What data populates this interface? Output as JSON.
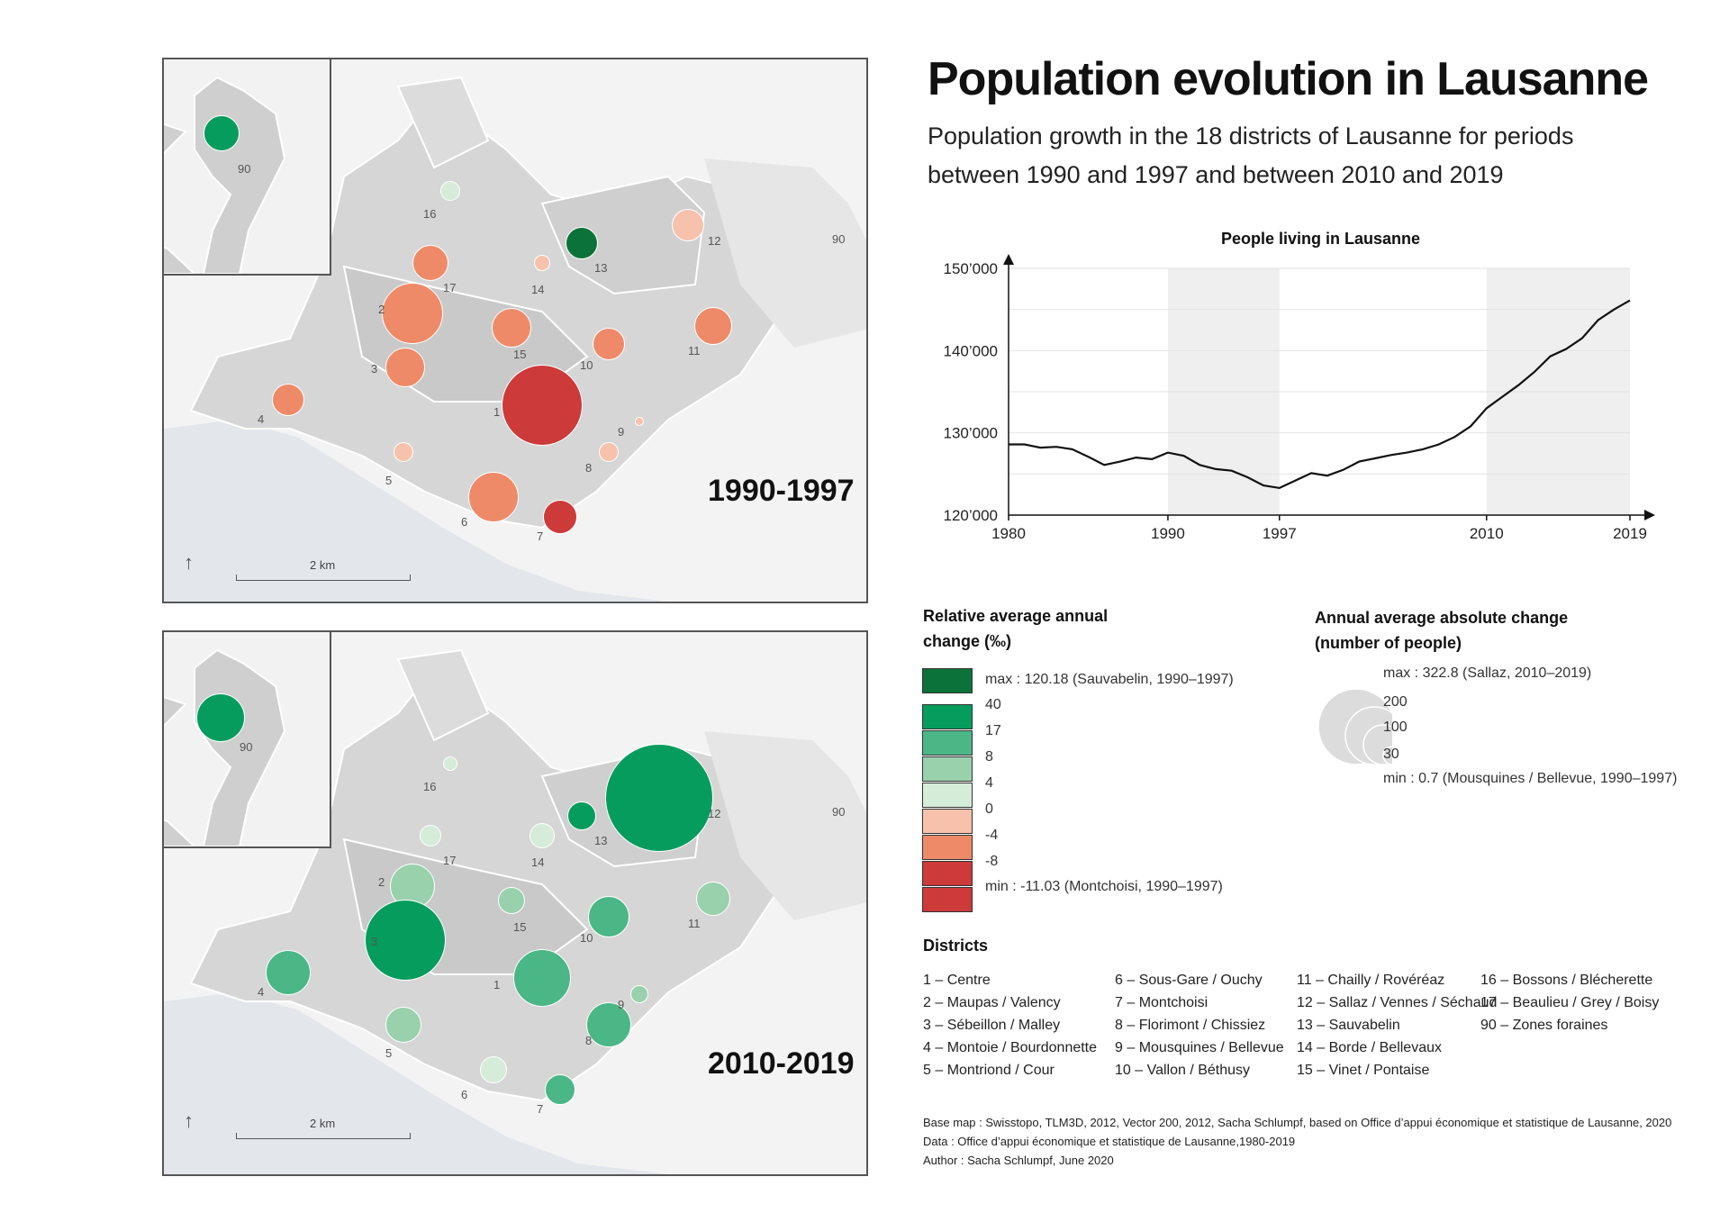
{
  "title": "Population evolution in Lausanne",
  "subtitle": "Population growth in the 18 districts of Lausanne for periods between 1990 and 1997 and between 2010 and 2019",
  "maps": [
    {
      "period": "1990-1997",
      "scale_label": "2 km",
      "inset_labels": [
        "90",
        "90"
      ],
      "outer_label": "90",
      "inset_circle": {
        "label": "90",
        "color": "#069c5d"
      },
      "districts": [
        {
          "id": "1",
          "color": "#cc3a3a",
          "size": 90
        },
        {
          "id": "2",
          "color": "#ef8a68",
          "size": 68
        },
        {
          "id": "3",
          "color": "#ef8a68",
          "size": 44
        },
        {
          "id": "4",
          "color": "#ef8a68",
          "size": 36
        },
        {
          "id": "5",
          "color": "#f7c2ac",
          "size": 22
        },
        {
          "id": "6",
          "color": "#ef8a68",
          "size": 56
        },
        {
          "id": "7",
          "color": "#cc3a3a",
          "size": 38
        },
        {
          "id": "8",
          "color": "#f7c2ac",
          "size": 22
        },
        {
          "id": "9",
          "color": "#f7c2ac",
          "size": 10
        },
        {
          "id": "10",
          "color": "#ef8a68",
          "size": 36
        },
        {
          "id": "11",
          "color": "#ef8a68",
          "size": 42
        },
        {
          "id": "12",
          "color": "#f7c2ac",
          "size": 36
        },
        {
          "id": "13",
          "color": "#0b7339",
          "size": 36
        },
        {
          "id": "14",
          "color": "#f7c2ac",
          "size": 18
        },
        {
          "id": "15",
          "color": "#ef8a68",
          "size": 44
        },
        {
          "id": "16",
          "color": "#d5ecd9",
          "size": 22
        },
        {
          "id": "17",
          "color": "#ef8a68",
          "size": 40
        }
      ]
    },
    {
      "period": "2010-2019",
      "scale_label": "2 km",
      "inset_labels": [
        "90",
        "90"
      ],
      "outer_label": "90",
      "inset_circle": {
        "label": "90",
        "color": "#069c5d"
      },
      "districts": [
        {
          "id": "1",
          "color": "#4bb686",
          "size": 64
        },
        {
          "id": "2",
          "color": "#98d1ac",
          "size": 50
        },
        {
          "id": "3",
          "color": "#069c5d",
          "size": 90
        },
        {
          "id": "4",
          "color": "#4bb686",
          "size": 50
        },
        {
          "id": "5",
          "color": "#98d1ac",
          "size": 40
        },
        {
          "id": "6",
          "color": "#d5ecd9",
          "size": 30
        },
        {
          "id": "7",
          "color": "#4bb686",
          "size": 34
        },
        {
          "id": "8",
          "color": "#4bb686",
          "size": 50
        },
        {
          "id": "9",
          "color": "#98d1ac",
          "size": 20
        },
        {
          "id": "10",
          "color": "#4bb686",
          "size": 46
        },
        {
          "id": "11",
          "color": "#98d1ac",
          "size": 38
        },
        {
          "id": "12",
          "color": "#069c5d",
          "size": 120
        },
        {
          "id": "13",
          "color": "#069c5d",
          "size": 32
        },
        {
          "id": "14",
          "color": "#d5ecd9",
          "size": 28
        },
        {
          "id": "15",
          "color": "#98d1ac",
          "size": 30
        },
        {
          "id": "16",
          "color": "#d5ecd9",
          "size": 16
        },
        {
          "id": "17",
          "color": "#d5ecd9",
          "size": 24
        }
      ]
    }
  ],
  "chart_data": {
    "type": "line",
    "title": "People living in Lausanne",
    "x": [
      1980,
      1981,
      1982,
      1983,
      1984,
      1985,
      1986,
      1987,
      1988,
      1989,
      1990,
      1991,
      1992,
      1993,
      1994,
      1995,
      1996,
      1997,
      1998,
      1999,
      2000,
      2001,
      2002,
      2003,
      2004,
      2005,
      2006,
      2007,
      2008,
      2009,
      2010,
      2011,
      2012,
      2013,
      2014,
      2015,
      2016,
      2017,
      2018,
      2019
    ],
    "y": [
      128600,
      128600,
      128200,
      128300,
      128000,
      127100,
      126100,
      126500,
      127000,
      126800,
      127600,
      127200,
      126100,
      125600,
      125400,
      124600,
      123600,
      123300,
      124200,
      125100,
      124800,
      125500,
      126500,
      126900,
      127300,
      127600,
      128000,
      128600,
      129500,
      130800,
      133000,
      134400,
      135800,
      137400,
      139300,
      140200,
      141500,
      143700,
      145000,
      146100
    ],
    "xticks": [
      "1980",
      "1990",
      "1997",
      "2010",
      "2019"
    ],
    "yticks": [
      "120’000",
      "130’000",
      "140’000",
      "150’000"
    ],
    "ylim": [
      120000,
      150000
    ],
    "xlim": [
      1980,
      2019
    ],
    "shaded_periods": [
      [
        1990,
        1997
      ],
      [
        2010,
        2019
      ]
    ],
    "grid": true,
    "line_color": "#111111"
  },
  "legend_relative": {
    "title": "Relative average annual change (‰)",
    "max_label": "max : 120.18 (Sauvabelin, 1990–1997)",
    "min_label": "min : -11.03 (Montchoisi, 1990–1997)",
    "max_color": "#0b7339",
    "classes": [
      {
        "color": "#069c5d",
        "label": "40"
      },
      {
        "color": "#4bb686",
        "label": "17"
      },
      {
        "color": "#98d1ac",
        "label": "8"
      },
      {
        "color": "#d5ecd9",
        "label": "4"
      },
      {
        "color": "#f7c2ac",
        "label": "0"
      },
      {
        "color": "#ef8a68",
        "label": "-4"
      },
      {
        "color": "#cc3a3a",
        "label": "-8"
      }
    ]
  },
  "legend_absolute": {
    "title": "Annual average absolute change (number of people)",
    "max_label": "max : 322.8 (Sallaz, 2010–2019)",
    "values": [
      "200",
      "100",
      "30"
    ],
    "min_label": "min : 0.7 (Mousquines / Bellevue, 1990–1997)"
  },
  "districts_title": "Districts",
  "districts_columns": [
    [
      "1 – Centre",
      "2 – Maupas / Valency",
      "3 – Sébeillon / Malley",
      "4 – Montoie / Bourdonnette",
      "5 – Montriond / Cour"
    ],
    [
      "6 – Sous-Gare / Ouchy",
      "7 – Montchoisi",
      "8 – Florimont / Chissiez",
      "9 – Mousquines / Bellevue",
      "10 – Vallon / Béthusy"
    ],
    [
      "11 – Chailly / Rovéréaz",
      "12 – Sallaz / Vennes / Séchaud",
      "13 – Sauvabelin",
      "14 – Borde / Bellevaux",
      "15 – Vinet / Pontaise"
    ],
    [
      "16 – Bossons / Blécherette",
      "17 – Beaulieu / Grey / Boisy",
      "90 – Zones foraines"
    ]
  ],
  "credits": [
    "Base map : Swisstopo, TLM3D, 2012, Vector 200, 2012, Sacha Schlumpf, based on Office d’appui économique et statistique de Lausanne, 2020",
    "Data : Office d’appui économique et statistique de Lausanne,1980-2019",
    "Author : Sacha Schlumpf, June 2020"
  ]
}
